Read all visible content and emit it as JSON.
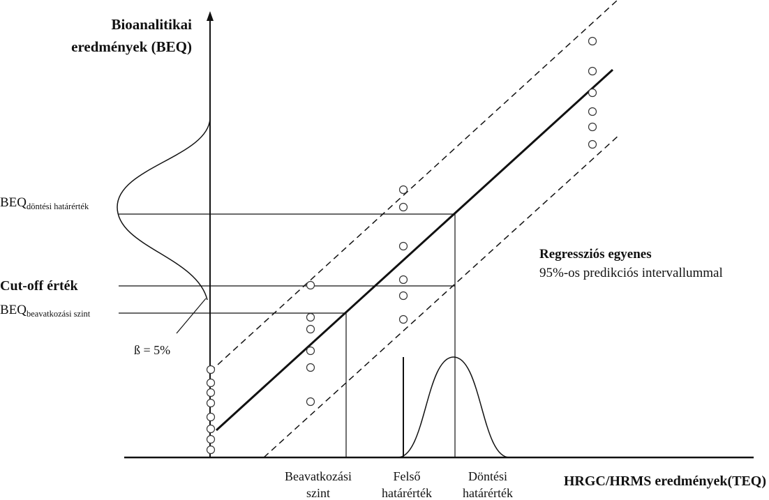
{
  "y_axis_title": [
    "Bioanalitikai",
    "eredmények (BEQ)"
  ],
  "x_axis_title": "HRGC/HRMS eredmények(TEQ)",
  "y_marks": {
    "beq_decision_main": "BEQ",
    "beq_decision_sub": "döntési határérték",
    "cutoff": "Cut-off érték",
    "beq_action_main": "BEQ",
    "beq_action_sub": "beavatkozási szint"
  },
  "beta_label": "ß = 5%",
  "x_marks": {
    "action_level": [
      "Beavatkozási",
      "szint"
    ],
    "upper_limit": [
      "Felső",
      "határérték"
    ],
    "decision_limit": [
      "Döntési",
      "határérték"
    ]
  },
  "regression_legend": {
    "title": "Regressziós egyenes",
    "subtitle": "95%-os predikciós intervallummal"
  },
  "colors": {
    "ink": "#111111",
    "marker": "#333333"
  }
}
